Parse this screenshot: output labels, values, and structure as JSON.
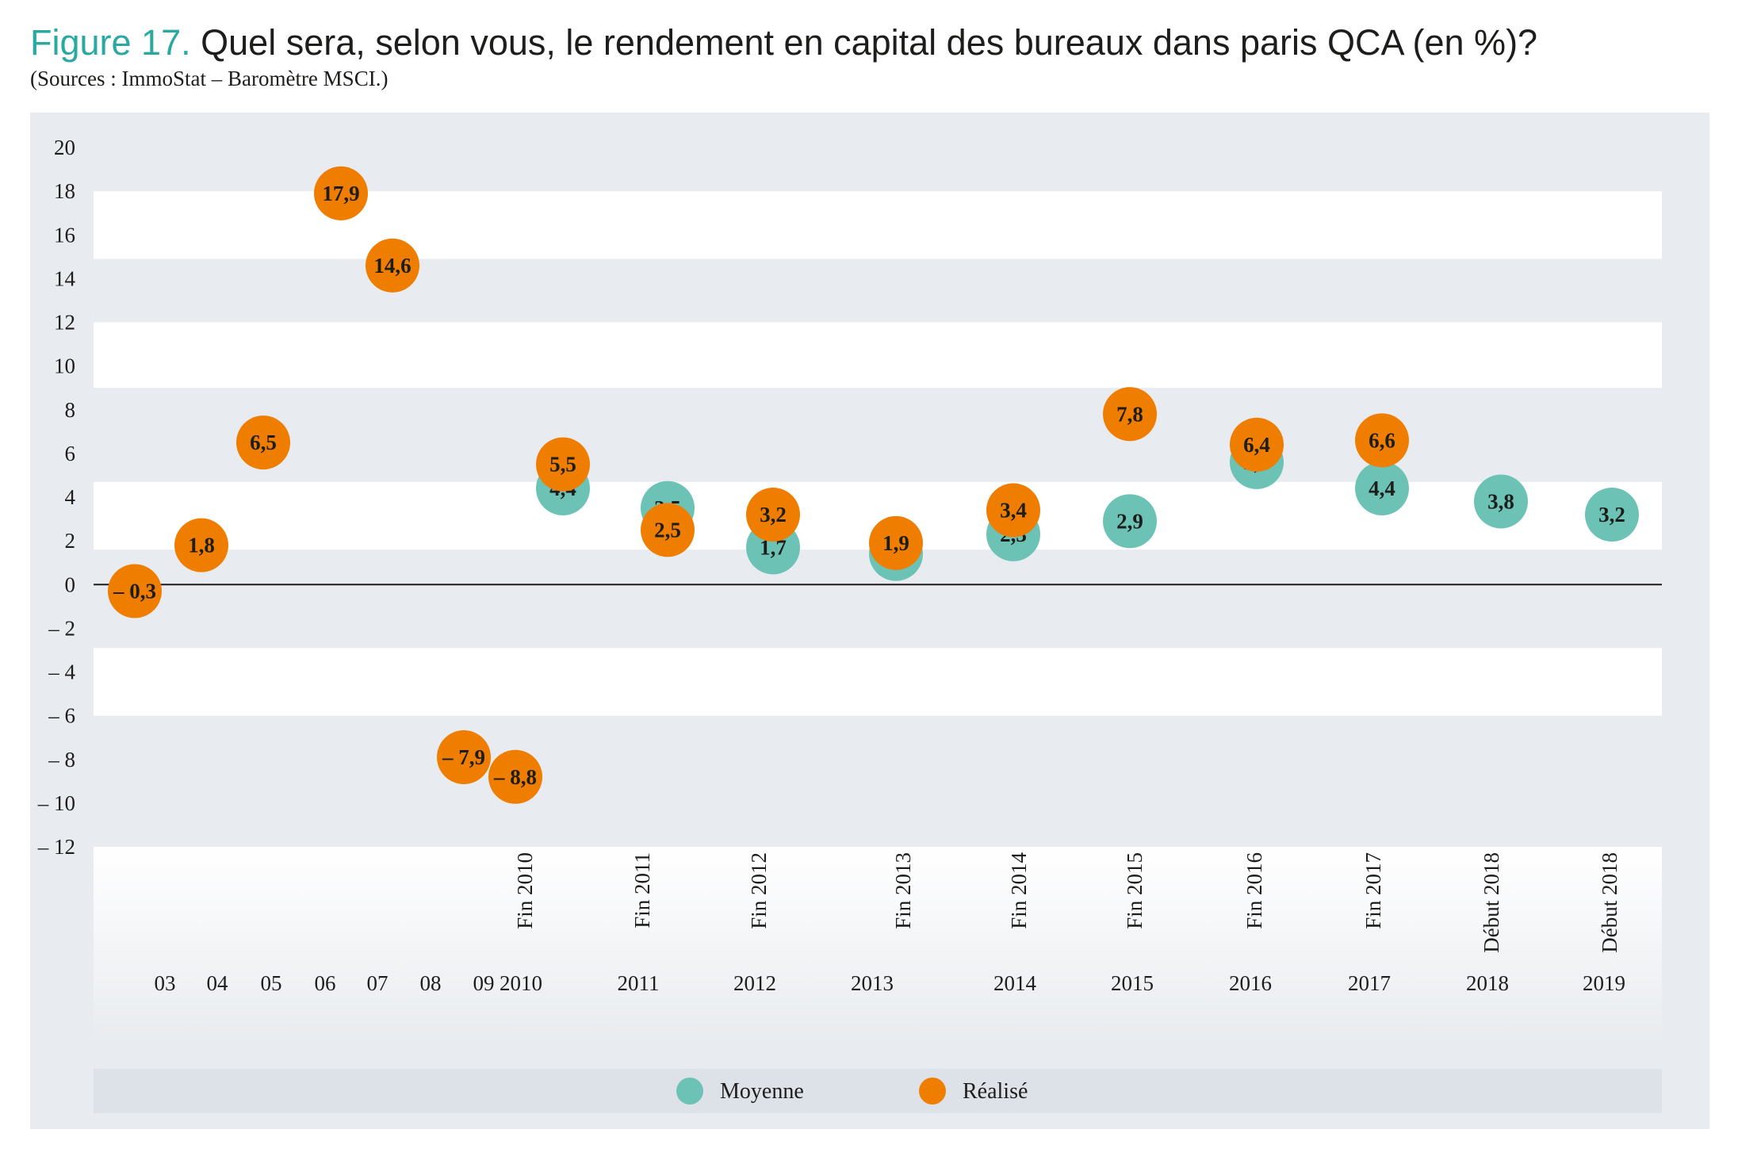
{
  "header": {
    "figure_label": "Figure 17.",
    "title": "Quel sera, selon vous, le rendement en capital des bureaux dans paris QCA (en %)?",
    "source": "(Sources : ImmoStat – Baromètre MSCI.)"
  },
  "chart_data": {
    "type": "scatter",
    "title": "Quel sera, selon vous, le rendement en capital des bureaux dans paris QCA (en %)?",
    "xlabel": "",
    "ylabel": "",
    "ylim": [
      -12,
      20
    ],
    "y_ticks": [
      "20",
      "18",
      "16",
      "14",
      "12",
      "10",
      "8",
      "6",
      "4",
      "2",
      "0",
      "– 2",
      "– 4",
      "– 6",
      "– 8",
      "– 10",
      "– 12"
    ],
    "x_year_labels": [
      "03",
      "04",
      "05",
      "06",
      "07",
      "08",
      "09",
      "2010",
      "2011",
      "2012",
      "2013",
      "2014",
      "2015",
      "2016",
      "2017",
      "2018",
      "2019"
    ],
    "survey_labels": [
      "Fin 2010",
      "Fin 2011",
      "Fin 2012",
      "Fin 2013",
      "Fin 2014",
      "Fin 2015",
      "Fin 2016",
      "Fin 2017",
      "Début 2018",
      "Début 2018"
    ],
    "legend_position": "bottom",
    "colors": {
      "Moyenne": "#6cc3b5",
      "Réalisé": "#ef7d00"
    },
    "series": [
      {
        "name": "Réalisé",
        "points": [
          {
            "x": "03",
            "y": -0.3,
            "label": "– 0,3"
          },
          {
            "x": "04",
            "y": 1.8,
            "label": "1,8"
          },
          {
            "x": "05",
            "y": 6.5,
            "label": "6,5"
          },
          {
            "x": "06",
            "y": 17.9,
            "label": "17,9"
          },
          {
            "x": "07",
            "y": 14.6,
            "label": "14,6"
          },
          {
            "x": "09",
            "y": -7.9,
            "label": "– 7,9"
          },
          {
            "x": "2010",
            "y": -8.8,
            "label": "– 8,8"
          },
          {
            "x": "Fin 2010",
            "y": 5.5,
            "label": "5,5"
          },
          {
            "x": "Fin 2011",
            "y": 2.5,
            "label": "2,5"
          },
          {
            "x": "Fin 2012",
            "y": 3.2,
            "label": "3,2"
          },
          {
            "x": "Fin 2013",
            "y": 1.9,
            "label": "1,9"
          },
          {
            "x": "Fin 2014",
            "y": 3.4,
            "label": "3,4"
          },
          {
            "x": "Fin 2015",
            "y": 7.8,
            "label": "7,8"
          },
          {
            "x": "Fin 2016",
            "y": 6.4,
            "label": "6,4"
          },
          {
            "x": "Fin 2017",
            "y": 6.6,
            "label": "6,6"
          }
        ]
      },
      {
        "name": "Moyenne",
        "points": [
          {
            "x": "Fin 2010",
            "y": 4.4,
            "label": "4,4"
          },
          {
            "x": "Fin 2011",
            "y": 3.5,
            "label": "3,5"
          },
          {
            "x": "Fin 2012",
            "y": 1.7,
            "label": "1,7"
          },
          {
            "x": "Fin 2013",
            "y": 1.4,
            "label": "1,4"
          },
          {
            "x": "Fin 2014",
            "y": 2.3,
            "label": "2,3"
          },
          {
            "x": "Fin 2015",
            "y": 2.9,
            "label": "2,9"
          },
          {
            "x": "Fin 2016",
            "y": 5.6,
            "label": "5,6"
          },
          {
            "x": "Fin 2017",
            "y": 4.4,
            "label": "4,4"
          },
          {
            "x": "Début 2018",
            "y": 3.8,
            "label": "3,8"
          },
          {
            "x": "Début 2018",
            "y": 3.2,
            "label": "3,2"
          }
        ]
      }
    ],
    "legend": [
      "Moyenne",
      "Réalisé"
    ]
  }
}
